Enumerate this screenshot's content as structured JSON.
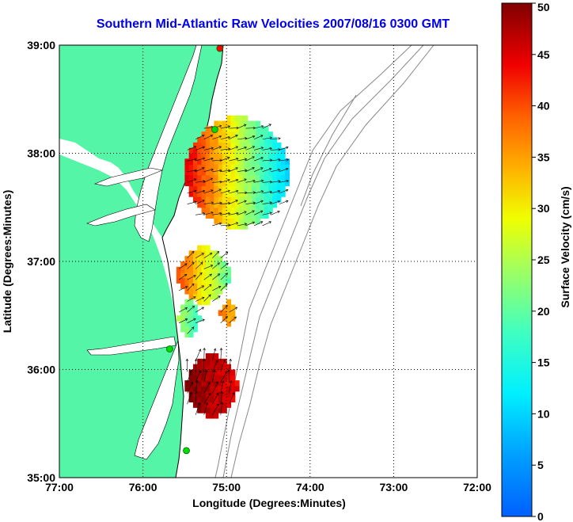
{
  "title": "Southern Mid-Atlantic Raw Velocities 2007/08/16 0300 GMT",
  "x_axis": {
    "label": "Longitude (Degrees:Minutes)",
    "ticks": [
      "77:00",
      "76:00",
      "75:00",
      "74:00",
      "73:00",
      "72:00"
    ],
    "tick_values": [
      -77,
      -76,
      -75,
      -74,
      -73,
      -72
    ]
  },
  "y_axis": {
    "label": "Latitude (Degrees:Minutes)",
    "ticks": [
      "35:00",
      "36:00",
      "37:00",
      "38:00",
      "39:00"
    ],
    "tick_values": [
      35,
      36,
      37,
      38,
      39
    ]
  },
  "colorbar": {
    "label": "Surface Velocity (cm/s)",
    "ticks": [
      "0",
      "5",
      "10",
      "15",
      "20",
      "25",
      "30",
      "35",
      "40",
      "45",
      "50"
    ],
    "min": 0,
    "max": 50,
    "colormap": "jet"
  },
  "colors": {
    "land": "#55f5a8",
    "title": "#0000ee",
    "bathymetry": "#888888",
    "grid": "#000000"
  },
  "stations": [
    {
      "lon": -75.08,
      "lat": 38.97,
      "color": "#ff0000"
    },
    {
      "lon": -75.14,
      "lat": 38.22,
      "color": "#00dd00"
    },
    {
      "lon": -75.68,
      "lat": 36.19,
      "color": "#00dd00"
    },
    {
      "lon": -75.48,
      "lat": 35.25,
      "color": "#00dd00"
    }
  ],
  "chart_data": {
    "type": "heatmap",
    "title": "Southern Mid-Atlantic Raw Velocities 2007/08/16 0300 GMT",
    "xlabel": "Longitude (Degrees:Minutes)",
    "ylabel": "Latitude (Degrees:Minutes)",
    "xlim": [
      -77,
      -72
    ],
    "ylim": [
      35,
      39
    ],
    "grid": true,
    "color_range": [
      0,
      50
    ],
    "colorbar_label": "Surface Velocity (cm/s)",
    "regions": [
      {
        "name": "north_patch",
        "lon": [
          -75.5,
          -74.3
        ],
        "lat": [
          37.3,
          38.3
        ],
        "speed_range": [
          10,
          45
        ]
      },
      {
        "name": "middle_patch",
        "lon": [
          -75.6,
          -75.0
        ],
        "lat": [
          36.6,
          37.1
        ],
        "speed_range": [
          20,
          40
        ]
      },
      {
        "name": "small_patch",
        "lon": [
          -75.6,
          -75.35
        ],
        "lat": [
          36.3,
          36.6
        ],
        "speed_range": [
          17,
          25
        ]
      },
      {
        "name": "orange_patch",
        "lon": [
          -75.1,
          -74.9
        ],
        "lat": [
          36.4,
          36.6
        ],
        "speed_range": [
          33,
          37
        ]
      },
      {
        "name": "south_patch",
        "lon": [
          -75.5,
          -74.9
        ],
        "lat": [
          35.55,
          36.1
        ],
        "speed_range": [
          44,
          50
        ]
      }
    ]
  }
}
